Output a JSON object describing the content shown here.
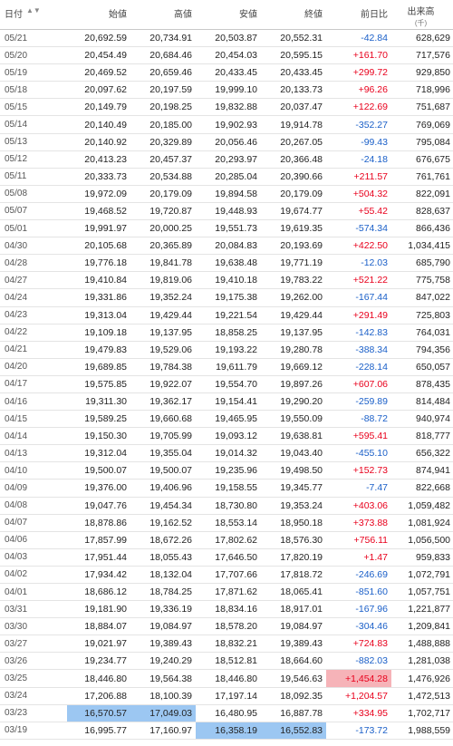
{
  "header": {
    "date": "日付",
    "sort_icon": "▲▼",
    "open": "始値",
    "high": "高値",
    "low": "安値",
    "close": "終値",
    "change": "前日比",
    "volume": "出来高",
    "volume_unit": "(千)"
  },
  "colors": {
    "up": "#e8001c",
    "down": "#1a5fc8",
    "highlight_blue": "#9cc7f2",
    "highlight_red": "#f6b3b8"
  },
  "rows": [
    {
      "date": "05/21",
      "open": "20,692.59",
      "high": "20,734.91",
      "low": "20,503.87",
      "close": "20,552.31",
      "change": "-42.84",
      "volume": "628,629"
    },
    {
      "date": "05/20",
      "open": "20,454.49",
      "high": "20,684.46",
      "low": "20,454.03",
      "close": "20,595.15",
      "change": "+161.70",
      "volume": "717,576"
    },
    {
      "date": "05/19",
      "open": "20,469.52",
      "high": "20,659.46",
      "low": "20,433.45",
      "close": "20,433.45",
      "change": "+299.72",
      "volume": "929,850"
    },
    {
      "date": "05/18",
      "open": "20,097.62",
      "high": "20,197.59",
      "low": "19,999.10",
      "close": "20,133.73",
      "change": "+96.26",
      "volume": "718,996"
    },
    {
      "date": "05/15",
      "open": "20,149.79",
      "high": "20,198.25",
      "low": "19,832.88",
      "close": "20,037.47",
      "change": "+122.69",
      "volume": "751,687"
    },
    {
      "date": "05/14",
      "open": "20,140.49",
      "high": "20,185.00",
      "low": "19,902.93",
      "close": "19,914.78",
      "change": "-352.27",
      "volume": "769,069"
    },
    {
      "date": "05/13",
      "open": "20,140.92",
      "high": "20,329.89",
      "low": "20,056.46",
      "close": "20,267.05",
      "change": "-99.43",
      "volume": "795,084"
    },
    {
      "date": "05/12",
      "open": "20,413.23",
      "high": "20,457.37",
      "low": "20,293.97",
      "close": "20,366.48",
      "change": "-24.18",
      "volume": "676,675"
    },
    {
      "date": "05/11",
      "open": "20,333.73",
      "high": "20,534.88",
      "low": "20,285.04",
      "close": "20,390.66",
      "change": "+211.57",
      "volume": "761,761"
    },
    {
      "date": "05/08",
      "open": "19,972.09",
      "high": "20,179.09",
      "low": "19,894.58",
      "close": "20,179.09",
      "change": "+504.32",
      "volume": "822,091"
    },
    {
      "date": "05/07",
      "open": "19,468.52",
      "high": "19,720.87",
      "low": "19,448.93",
      "close": "19,674.77",
      "change": "+55.42",
      "volume": "828,637"
    },
    {
      "date": "05/01",
      "open": "19,991.97",
      "high": "20,000.25",
      "low": "19,551.73",
      "close": "19,619.35",
      "change": "-574.34",
      "volume": "866,436"
    },
    {
      "date": "04/30",
      "open": "20,105.68",
      "high": "20,365.89",
      "low": "20,084.83",
      "close": "20,193.69",
      "change": "+422.50",
      "volume": "1,034,415"
    },
    {
      "date": "04/28",
      "open": "19,776.18",
      "high": "19,841.78",
      "low": "19,638.48",
      "close": "19,771.19",
      "change": "-12.03",
      "volume": "685,790"
    },
    {
      "date": "04/27",
      "open": "19,410.84",
      "high": "19,819.06",
      "low": "19,410.18",
      "close": "19,783.22",
      "change": "+521.22",
      "volume": "775,758"
    },
    {
      "date": "04/24",
      "open": "19,331.86",
      "high": "19,352.24",
      "low": "19,175.38",
      "close": "19,262.00",
      "change": "-167.44",
      "volume": "847,022"
    },
    {
      "date": "04/23",
      "open": "19,313.04",
      "high": "19,429.44",
      "low": "19,221.54",
      "close": "19,429.44",
      "change": "+291.49",
      "volume": "725,803"
    },
    {
      "date": "04/22",
      "open": "19,109.18",
      "high": "19,137.95",
      "low": "18,858.25",
      "close": "19,137.95",
      "change": "-142.83",
      "volume": "764,031"
    },
    {
      "date": "04/21",
      "open": "19,479.83",
      "high": "19,529.06",
      "low": "19,193.22",
      "close": "19,280.78",
      "change": "-388.34",
      "volume": "794,356"
    },
    {
      "date": "04/20",
      "open": "19,689.85",
      "high": "19,784.38",
      "low": "19,611.79",
      "close": "19,669.12",
      "change": "-228.14",
      "volume": "650,057"
    },
    {
      "date": "04/17",
      "open": "19,575.85",
      "high": "19,922.07",
      "low": "19,554.70",
      "close": "19,897.26",
      "change": "+607.06",
      "volume": "878,435"
    },
    {
      "date": "04/16",
      "open": "19,311.30",
      "high": "19,362.17",
      "low": "19,154.41",
      "close": "19,290.20",
      "change": "-259.89",
      "volume": "814,484"
    },
    {
      "date": "04/15",
      "open": "19,589.25",
      "high": "19,660.68",
      "low": "19,465.95",
      "close": "19,550.09",
      "change": "-88.72",
      "volume": "940,974"
    },
    {
      "date": "04/14",
      "open": "19,150.30",
      "high": "19,705.99",
      "low": "19,093.12",
      "close": "19,638.81",
      "change": "+595.41",
      "volume": "818,777"
    },
    {
      "date": "04/13",
      "open": "19,312.04",
      "high": "19,355.04",
      "low": "19,014.32",
      "close": "19,043.40",
      "change": "-455.10",
      "volume": "656,322"
    },
    {
      "date": "04/10",
      "open": "19,500.07",
      "high": "19,500.07",
      "low": "19,235.96",
      "close": "19,498.50",
      "change": "+152.73",
      "volume": "874,941"
    },
    {
      "date": "04/09",
      "open": "19,376.00",
      "high": "19,406.96",
      "low": "19,158.55",
      "close": "19,345.77",
      "change": "-7.47",
      "volume": "822,668"
    },
    {
      "date": "04/08",
      "open": "19,047.76",
      "high": "19,454.34",
      "low": "18,730.80",
      "close": "19,353.24",
      "change": "+403.06",
      "volume": "1,059,482"
    },
    {
      "date": "04/07",
      "open": "18,878.86",
      "high": "19,162.52",
      "low": "18,553.14",
      "close": "18,950.18",
      "change": "+373.88",
      "volume": "1,081,924"
    },
    {
      "date": "04/06",
      "open": "17,857.99",
      "high": "18,672.26",
      "low": "17,802.62",
      "close": "18,576.30",
      "change": "+756.11",
      "volume": "1,056,500"
    },
    {
      "date": "04/03",
      "open": "17,951.44",
      "high": "18,055.43",
      "low": "17,646.50",
      "close": "17,820.19",
      "change": "+1.47",
      "volume": "959,833"
    },
    {
      "date": "04/02",
      "open": "17,934.42",
      "high": "18,132.04",
      "low": "17,707.66",
      "close": "17,818.72",
      "change": "-246.69",
      "volume": "1,072,791"
    },
    {
      "date": "04/01",
      "open": "18,686.12",
      "high": "18,784.25",
      "low": "17,871.62",
      "close": "18,065.41",
      "change": "-851.60",
      "volume": "1,057,751"
    },
    {
      "date": "03/31",
      "open": "19,181.90",
      "high": "19,336.19",
      "low": "18,834.16",
      "close": "18,917.01",
      "change": "-167.96",
      "volume": "1,221,877"
    },
    {
      "date": "03/30",
      "open": "18,884.07",
      "high": "19,084.97",
      "low": "18,578.20",
      "close": "19,084.97",
      "change": "-304.46",
      "volume": "1,209,841"
    },
    {
      "date": "03/27",
      "open": "19,021.97",
      "high": "19,389.43",
      "low": "18,832.21",
      "close": "19,389.43",
      "change": "+724.83",
      "volume": "1,488,888"
    },
    {
      "date": "03/26",
      "open": "19,234.77",
      "high": "19,240.29",
      "low": "18,512.81",
      "close": "18,664.60",
      "change": "-882.03",
      "volume": "1,281,038"
    },
    {
      "date": "03/25",
      "open": "18,446.80",
      "high": "19,564.38",
      "low": "18,446.80",
      "close": "19,546.63",
      "change": "+1,454.28",
      "volume": "1,476,926"
    },
    {
      "date": "03/24",
      "open": "17,206.88",
      "high": "18,100.39",
      "low": "17,197.14",
      "close": "18,092.35",
      "change": "+1,204.57",
      "volume": "1,472,513"
    },
    {
      "date": "03/23",
      "open": "16,570.57",
      "high": "17,049.03",
      "low": "16,480.95",
      "close": "16,887.78",
      "change": "+334.95",
      "volume": "1,702,717"
    },
    {
      "date": "03/19",
      "open": "16,995.77",
      "high": "17,160.97",
      "low": "16,358.19",
      "close": "16,552.83",
      "change": "-173.72",
      "volume": "1,988,559"
    }
  ],
  "highlights": [
    {
      "row": 37,
      "column": "change",
      "color": "highlight_red"
    },
    {
      "row": 39,
      "column": "open",
      "color": "highlight_blue"
    },
    {
      "row": 39,
      "column": "high",
      "color": "highlight_blue"
    },
    {
      "row": 40,
      "column": "low",
      "color": "highlight_blue"
    },
    {
      "row": 40,
      "column": "close",
      "color": "highlight_blue"
    }
  ]
}
